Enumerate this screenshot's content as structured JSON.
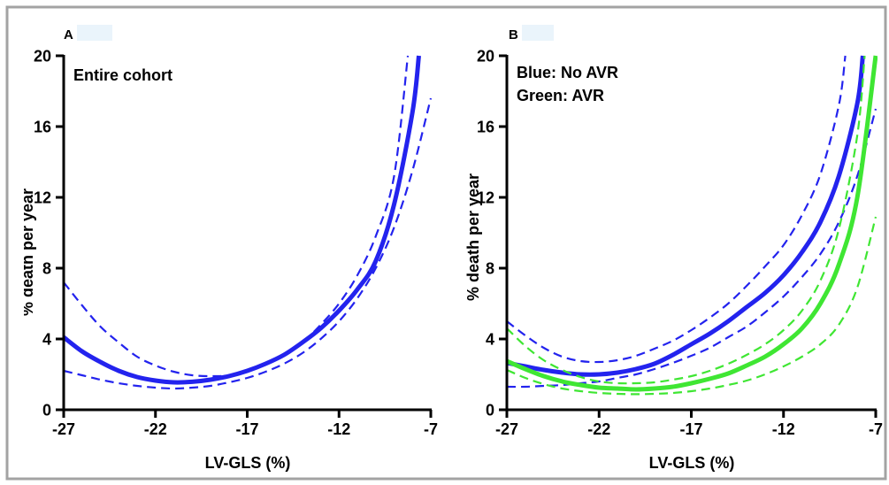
{
  "chart_data": [
    {
      "panel_label": "A",
      "type": "line",
      "annotations": [
        "Entire cohort"
      ],
      "xlabel": "LV-GLS (%)",
      "ylabel": "% death per year",
      "xlim": [
        -27,
        -7
      ],
      "ylim": [
        0,
        20
      ],
      "x_ticks": [
        -27,
        -22,
        -17,
        -12,
        -7
      ],
      "y_ticks": [
        0,
        4,
        8,
        12,
        16,
        20
      ],
      "grid": false,
      "series": [
        {
          "color": "#2323ee",
          "line_style": "dashed",
          "x": [
            -27,
            -26,
            -25,
            -24,
            -23,
            -22,
            -21,
            -20,
            -19,
            -18,
            -17,
            -16,
            -15,
            -14,
            -13,
            -12,
            -11,
            -10,
            -9,
            -8.25
          ],
          "y": [
            7.2,
            5.9,
            4.7,
            3.8,
            3.0,
            2.5,
            2.15,
            1.95,
            1.9,
            1.95,
            2.2,
            2.55,
            3.1,
            3.8,
            4.8,
            6.0,
            7.6,
            9.8,
            13.2,
            20
          ]
        },
        {
          "color": "#2323ee",
          "line_style": "dashed",
          "x": [
            -27,
            -26,
            -25,
            -24,
            -23,
            -22,
            -21,
            -20,
            -19,
            -18,
            -17,
            -16,
            -15,
            -14,
            -13,
            -12,
            -11,
            -10,
            -9,
            -8,
            -7
          ],
          "y": [
            2.2,
            1.95,
            1.7,
            1.5,
            1.35,
            1.25,
            1.2,
            1.25,
            1.35,
            1.55,
            1.8,
            2.15,
            2.6,
            3.2,
            4.0,
            5.0,
            6.3,
            8.0,
            10.3,
            13.5,
            17.6
          ]
        },
        {
          "color": "#2323ee",
          "line_style": "solid",
          "x": [
            -27,
            -26,
            -25,
            -24,
            -23,
            -22,
            -21,
            -20,
            -19,
            -18,
            -17,
            -16,
            -15,
            -14,
            -13,
            -12,
            -11,
            -10,
            -9,
            -8,
            -7.65
          ],
          "y": [
            4.1,
            3.3,
            2.7,
            2.2,
            1.85,
            1.65,
            1.55,
            1.58,
            1.7,
            1.9,
            2.2,
            2.6,
            3.1,
            3.8,
            4.6,
            5.6,
            6.8,
            8.4,
            11.6,
            16.8,
            20
          ]
        }
      ]
    },
    {
      "panel_label": "B",
      "type": "line",
      "annotations": [
        "Blue: No AVR",
        "Green: AVR"
      ],
      "xlabel": "LV-GLS (%)",
      "ylabel": "% death per year",
      "xlim": [
        -27,
        -7
      ],
      "ylim": [
        0,
        20
      ],
      "x_ticks": [
        -27,
        -22,
        -17,
        -12,
        -7
      ],
      "y_ticks": [
        0,
        4,
        8,
        12,
        16,
        20
      ],
      "grid": false,
      "series": [
        {
          "color": "#2323ee",
          "line_style": "dashed",
          "x": [
            -27,
            -26,
            -25,
            -24,
            -23,
            -22,
            -21,
            -20,
            -19,
            -18,
            -17,
            -16,
            -15,
            -14,
            -13,
            -12,
            -11,
            -10,
            -9,
            -8.65
          ],
          "y": [
            5.0,
            4.2,
            3.5,
            3.0,
            2.75,
            2.7,
            2.8,
            3.05,
            3.45,
            3.9,
            4.5,
            5.2,
            6.0,
            7.0,
            8.1,
            9.3,
            11.0,
            13.3,
            17.2,
            20
          ]
        },
        {
          "color": "#2323ee",
          "line_style": "dashed",
          "x": [
            -27,
            -26,
            -25,
            -24,
            -23,
            -22,
            -21,
            -20,
            -19,
            -18,
            -17,
            -16,
            -15,
            -14,
            -13,
            -12,
            -11,
            -10,
            -9,
            -8,
            -7
          ],
          "y": [
            1.3,
            1.3,
            1.35,
            1.4,
            1.5,
            1.6,
            1.8,
            2.0,
            2.3,
            2.65,
            3.05,
            3.5,
            4.1,
            4.7,
            5.5,
            6.4,
            7.5,
            8.8,
            10.6,
            13.2,
            17.0
          ]
        },
        {
          "color": "#2323ee",
          "line_style": "solid",
          "x": [
            -27,
            -26,
            -25,
            -24,
            -23,
            -22,
            -21,
            -20,
            -19,
            -18,
            -17,
            -16,
            -15,
            -14,
            -13,
            -12,
            -11,
            -10,
            -9,
            -8,
            -7.7
          ],
          "y": [
            2.65,
            2.45,
            2.25,
            2.1,
            2.0,
            2.0,
            2.1,
            2.3,
            2.6,
            3.1,
            3.7,
            4.3,
            5.0,
            5.8,
            6.6,
            7.6,
            8.9,
            10.6,
            13.2,
            17.3,
            20
          ]
        },
        {
          "color": "#3fe633",
          "line_style": "dashed",
          "x": [
            -27,
            -26,
            -25,
            -24,
            -23,
            -22,
            -21,
            -20,
            -19,
            -18,
            -17,
            -16,
            -15,
            -14,
            -13,
            -12,
            -11,
            -10,
            -9,
            -8,
            -7.6
          ],
          "y": [
            4.6,
            3.6,
            2.8,
            2.25,
            1.85,
            1.6,
            1.5,
            1.5,
            1.55,
            1.7,
            1.9,
            2.2,
            2.6,
            3.1,
            3.7,
            4.5,
            5.6,
            7.3,
            10.2,
            15.5,
            20
          ]
        },
        {
          "color": "#3fe633",
          "line_style": "dashed",
          "x": [
            -27,
            -26,
            -25,
            -24,
            -23,
            -22,
            -21,
            -20,
            -19,
            -18,
            -17,
            -16,
            -15,
            -14,
            -13,
            -12,
            -11,
            -10,
            -9,
            -8,
            -7
          ],
          "y": [
            2.25,
            1.8,
            1.45,
            1.2,
            1.05,
            0.95,
            0.9,
            0.88,
            0.9,
            0.95,
            1.05,
            1.2,
            1.4,
            1.65,
            2.0,
            2.45,
            3.0,
            3.7,
            4.8,
            6.9,
            10.9
          ]
        },
        {
          "color": "#3fe633",
          "line_style": "solid",
          "x": [
            -27,
            -26,
            -25,
            -24,
            -23,
            -22,
            -21,
            -20,
            -19,
            -18,
            -17,
            -16,
            -15,
            -14,
            -13,
            -12,
            -11,
            -10,
            -9,
            -8,
            -7
          ],
          "y": [
            2.75,
            2.3,
            1.9,
            1.6,
            1.4,
            1.25,
            1.2,
            1.15,
            1.2,
            1.3,
            1.5,
            1.75,
            2.05,
            2.5,
            3.0,
            3.7,
            4.6,
            6.0,
            8.2,
            12.0,
            20
          ]
        }
      ]
    }
  ]
}
